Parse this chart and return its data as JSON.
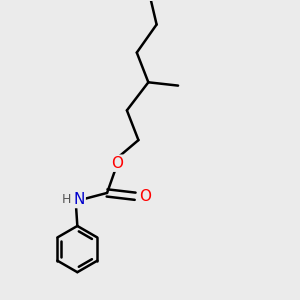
{
  "bg_color": "#ebebeb",
  "bond_color": "#000000",
  "bond_width": 1.8,
  "atom_colors": {
    "O": "#ff0000",
    "N": "#0000cd",
    "H": "#555555",
    "C": "#000000"
  },
  "font_size_atom": 10,
  "fig_size": [
    3.0,
    3.0
  ],
  "dpi": 100
}
